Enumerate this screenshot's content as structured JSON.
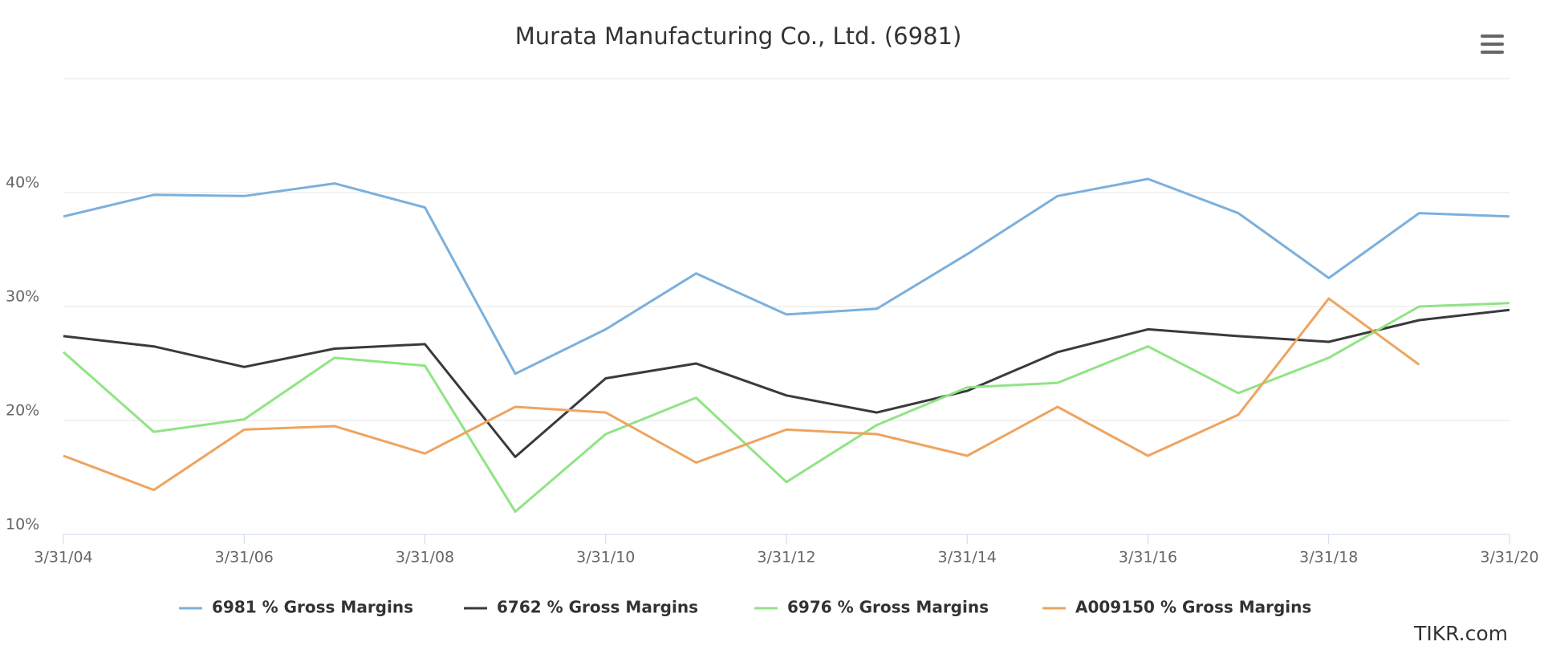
{
  "chart_data": {
    "type": "line",
    "title": "Murata Manufacturing Co., Ltd. (6981)",
    "categories": [
      "3/31/04",
      null,
      "3/31/06",
      null,
      "3/31/08",
      null,
      "3/31/10",
      null,
      "3/31/12",
      null,
      "3/31/14",
      null,
      "3/31/16",
      null,
      "3/31/18",
      null,
      "3/31/20"
    ],
    "series": [
      {
        "name": "6981 % Gross Margins",
        "color": "#7cb0dc",
        "values": [
          37.9,
          39.8,
          39.7,
          40.8,
          38.7,
          24.1,
          28.0,
          32.9,
          29.3,
          29.8,
          34.6,
          39.7,
          41.2,
          38.2,
          32.5,
          38.2,
          37.9
        ]
      },
      {
        "name": "6762 % Gross Margins",
        "color": "#3a3a3e",
        "values": [
          27.4,
          26.5,
          24.7,
          26.3,
          26.7,
          16.8,
          23.7,
          25.0,
          22.2,
          20.7,
          22.6,
          26.0,
          28.0,
          27.4,
          26.9,
          28.8,
          29.7
        ]
      },
      {
        "name": "6976 % Gross Margins",
        "color": "#90e484",
        "values": [
          26.0,
          19.0,
          20.1,
          25.5,
          24.8,
          12.0,
          18.8,
          22.0,
          14.6,
          19.6,
          22.9,
          23.3,
          26.5,
          22.4,
          25.5,
          30.0,
          30.3
        ]
      },
      {
        "name": "A009150 % Gross Margins",
        "color": "#eea460",
        "values": [
          16.9,
          13.9,
          19.2,
          19.5,
          17.1,
          21.2,
          20.7,
          16.3,
          19.2,
          18.8,
          16.9,
          21.2,
          16.9,
          20.5,
          30.7,
          24.9,
          null
        ]
      }
    ],
    "ylim": [
      10,
      50
    ],
    "yticks": [
      {
        "value": 10,
        "label": "10%"
      },
      {
        "value": 20,
        "label": "20%"
      },
      {
        "value": 30,
        "label": "30%"
      },
      {
        "value": 40,
        "label": "40%"
      }
    ],
    "grid": true,
    "legend": "bottom",
    "watermark": "TIKR.com"
  }
}
